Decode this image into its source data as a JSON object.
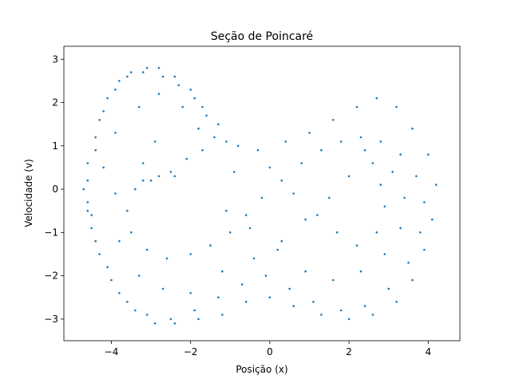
{
  "chart_data": {
    "type": "scatter",
    "title": "Seção de Poincaré",
    "xlabel": "Posição (x)",
    "ylabel": "Velocidade (v)",
    "xlim": [
      -5.2,
      4.8
    ],
    "ylim": [
      -3.5,
      3.3
    ],
    "xticks": [
      -4,
      -2,
      0,
      2,
      4
    ],
    "yticks": [
      -3,
      -2,
      -1,
      0,
      1,
      2,
      3
    ],
    "xtick_labels": [
      "−4",
      "−2",
      "0",
      "2",
      "4"
    ],
    "ytick_labels": [
      "−3",
      "−2",
      "−1",
      "0",
      "1",
      "2",
      "3"
    ],
    "marker_color": "#1f77b4",
    "grid": false,
    "points": [
      [
        -4.6,
        0.2
      ],
      [
        -4.5,
        -0.6
      ],
      [
        -4.4,
        0.9
      ],
      [
        -4.3,
        1.6
      ],
      [
        -4.1,
        2.1
      ],
      [
        -3.8,
        2.5
      ],
      [
        -3.5,
        2.7
      ],
      [
        -3.1,
        2.8
      ],
      [
        -2.7,
        2.6
      ],
      [
        -2.3,
        2.4
      ],
      [
        -1.9,
        2.1
      ],
      [
        -1.6,
        1.7
      ],
      [
        -1.4,
        1.2
      ],
      [
        -1.7,
        0.9
      ],
      [
        -2.1,
        0.7
      ],
      [
        -2.5,
        0.4
      ],
      [
        -3.0,
        0.2
      ],
      [
        -3.4,
        0.0
      ],
      [
        -3.6,
        -0.5
      ],
      [
        -3.5,
        -1.0
      ],
      [
        -3.1,
        -1.4
      ],
      [
        -2.6,
        -1.6
      ],
      [
        -2.0,
        -1.5
      ],
      [
        -1.5,
        -1.3
      ],
      [
        -1.0,
        -1.0
      ],
      [
        -0.6,
        -0.6
      ],
      [
        -0.2,
        -0.2
      ],
      [
        0.3,
        0.2
      ],
      [
        0.8,
        0.6
      ],
      [
        1.3,
        0.9
      ],
      [
        1.8,
        1.1
      ],
      [
        2.3,
        1.2
      ],
      [
        2.8,
        1.1
      ],
      [
        3.3,
        0.8
      ],
      [
        3.7,
        0.3
      ],
      [
        3.9,
        -0.3
      ],
      [
        3.8,
        -1.0
      ],
      [
        3.5,
        -1.7
      ],
      [
        3.0,
        -2.3
      ],
      [
        2.4,
        -2.7
      ],
      [
        1.8,
        -2.8
      ],
      [
        1.1,
        -2.6
      ],
      [
        0.5,
        -2.3
      ],
      [
        -0.1,
        -2.0
      ],
      [
        -0.7,
        -2.2
      ],
      [
        -1.3,
        -2.5
      ],
      [
        -1.9,
        -2.8
      ],
      [
        -2.5,
        -3.0
      ],
      [
        -3.1,
        -2.9
      ],
      [
        -3.6,
        -2.6
      ],
      [
        -4.0,
        -2.1
      ],
      [
        -4.3,
        -1.5
      ],
      [
        -4.5,
        -0.9
      ],
      [
        -4.6,
        -0.3
      ],
      [
        -4.2,
        0.5
      ],
      [
        -3.9,
        1.3
      ],
      [
        -3.3,
        1.9
      ],
      [
        -2.8,
        2.2
      ],
      [
        -2.2,
        1.9
      ],
      [
        -1.8,
        1.4
      ],
      [
        -2.9,
        1.1
      ],
      [
        -3.2,
        0.6
      ],
      [
        -3.9,
        -0.1
      ],
      [
        -3.8,
        -1.2
      ],
      [
        -3.3,
        -2.0
      ],
      [
        -2.7,
        -2.3
      ],
      [
        -2.0,
        -2.4
      ],
      [
        -1.2,
        -1.9
      ],
      [
        -0.4,
        -1.6
      ],
      [
        0.3,
        -1.2
      ],
      [
        0.9,
        -0.7
      ],
      [
        1.5,
        -0.2
      ],
      [
        2.0,
        0.3
      ],
      [
        2.6,
        0.6
      ],
      [
        3.1,
        0.4
      ],
      [
        3.4,
        -0.2
      ],
      [
        3.3,
        -0.9
      ],
      [
        2.9,
        -1.5
      ],
      [
        2.3,
        -1.9
      ],
      [
        1.6,
        -2.1
      ],
      [
        0.9,
        -1.9
      ],
      [
        0.2,
        -1.4
      ],
      [
        -0.5,
        -0.9
      ],
      [
        -1.1,
        -0.5
      ],
      [
        -0.9,
        0.4
      ],
      [
        -0.3,
        0.9
      ],
      [
        0.4,
        1.1
      ],
      [
        1.0,
        1.3
      ],
      [
        1.6,
        1.6
      ],
      [
        2.2,
        1.9
      ],
      [
        2.7,
        2.1
      ],
      [
        3.2,
        1.9
      ],
      [
        3.6,
        1.4
      ],
      [
        4.0,
        0.8
      ],
      [
        4.2,
        0.1
      ],
      [
        4.1,
        -0.7
      ],
      [
        3.9,
        -1.4
      ],
      [
        3.6,
        -2.1
      ],
      [
        3.2,
        -2.6
      ],
      [
        2.6,
        -2.9
      ],
      [
        2.0,
        -3.0
      ],
      [
        1.3,
        -2.9
      ],
      [
        0.6,
        -2.7
      ],
      [
        0.0,
        -2.5
      ],
      [
        -0.6,
        -2.6
      ],
      [
        -1.2,
        -2.9
      ],
      [
        -1.8,
        -3.0
      ],
      [
        -2.4,
        -3.1
      ],
      [
        -2.9,
        -3.1
      ],
      [
        -3.4,
        -2.8
      ],
      [
        -3.8,
        -2.4
      ],
      [
        -4.1,
        -1.8
      ],
      [
        -4.4,
        -1.2
      ],
      [
        -4.6,
        -0.5
      ],
      [
        -4.7,
        0.0
      ],
      [
        -4.6,
        0.6
      ],
      [
        -4.4,
        1.2
      ],
      [
        -4.2,
        1.8
      ],
      [
        -3.9,
        2.3
      ],
      [
        -3.6,
        2.6
      ],
      [
        -3.2,
        2.7
      ],
      [
        -2.8,
        2.8
      ],
      [
        -2.4,
        2.6
      ],
      [
        -2.0,
        2.3
      ],
      [
        -1.7,
        1.9
      ],
      [
        -1.3,
        1.5
      ],
      [
        -1.1,
        1.1
      ],
      [
        -2.4,
        0.3
      ],
      [
        -2.8,
        0.3
      ],
      [
        -3.2,
        0.2
      ],
      [
        -0.8,
        1.0
      ],
      [
        0.0,
        0.5
      ],
      [
        0.6,
        -0.1
      ],
      [
        1.2,
        -0.6
      ],
      [
        1.7,
        -1.0
      ],
      [
        2.2,
        -1.3
      ],
      [
        2.7,
        -1.0
      ],
      [
        2.9,
        -0.4
      ],
      [
        2.8,
        0.1
      ],
      [
        2.4,
        0.9
      ]
    ]
  }
}
